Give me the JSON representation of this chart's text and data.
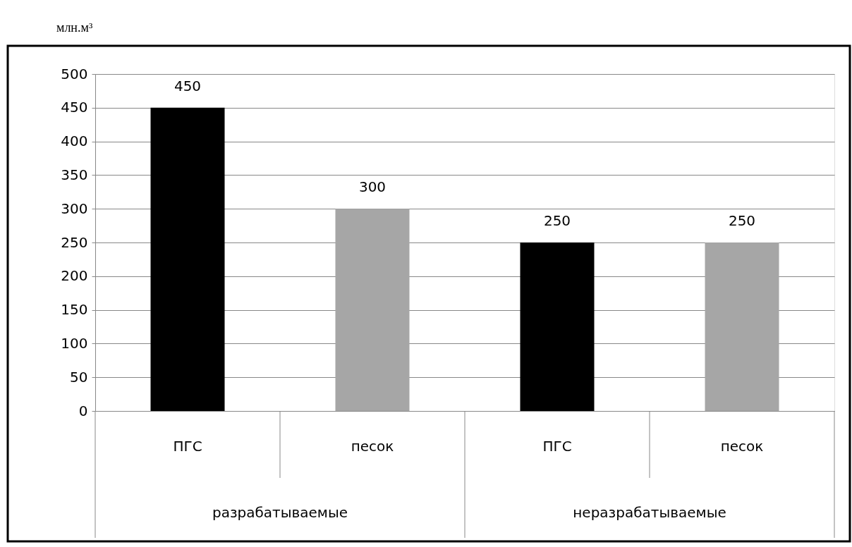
{
  "chart_data": {
    "type": "bar",
    "ylabel": "млн.м³",
    "categories": [
      "ПГС",
      "песок",
      "ПГС",
      "песок"
    ],
    "values": [
      450,
      300,
      250,
      250
    ],
    "colors": [
      "#000000",
      "#a6a6a6",
      "#000000",
      "#a6a6a6"
    ],
    "ylim": [
      0,
      500
    ],
    "yticks": [
      0,
      50,
      100,
      150,
      200,
      250,
      300,
      350,
      400,
      450,
      500
    ],
    "grid": "y",
    "data_labels": true,
    "annotations": [
      "разрабатываемые",
      "неразрабатываемые"
    ]
  }
}
